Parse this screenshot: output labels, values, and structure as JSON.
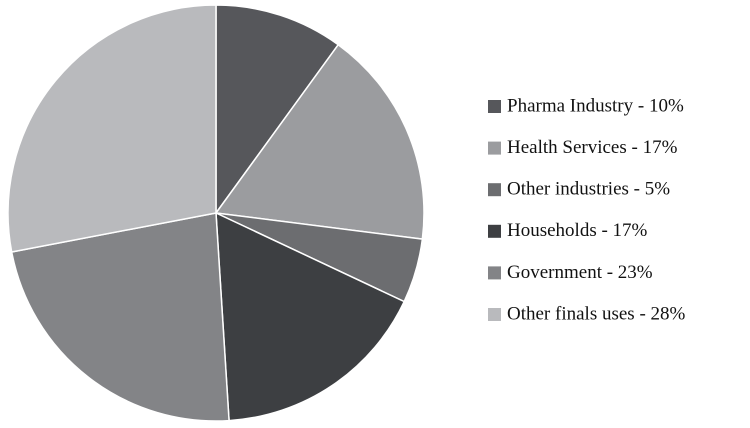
{
  "chart_data": {
    "type": "pie",
    "categories": [
      "Pharma Industry - 10%",
      "Health Services - 17%",
      "Other industries - 5%",
      "Households - 17%",
      "Government - 23%",
      "Other finals uses - 28%"
    ],
    "values": [
      10,
      17,
      5,
      17,
      23,
      28
    ],
    "colors": [
      "#56575b",
      "#9b9c9f",
      "#6c6d70",
      "#3d3f42",
      "#838487",
      "#b9babd"
    ],
    "legend": "right"
  }
}
